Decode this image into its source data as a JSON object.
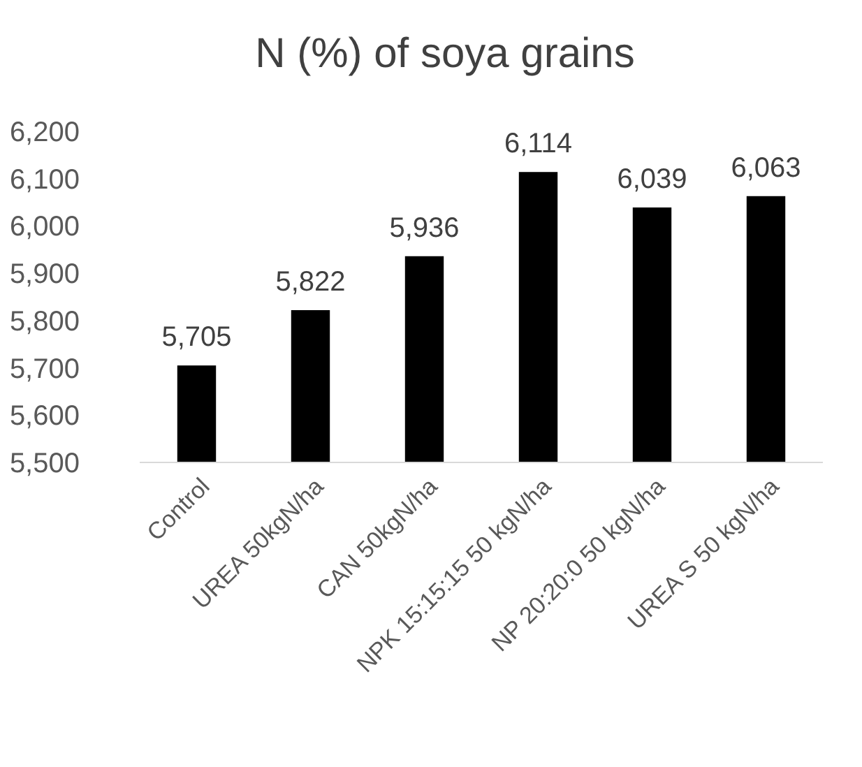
{
  "chart_data": {
    "type": "bar",
    "title": "N (%) of soya grains",
    "categories": [
      "Control",
      "UREA 50kgN/ha",
      "CAN 50kgN/ha",
      "NPK 15:15:15 50 kgN/ha",
      "NP 20:20:0 50 kgN/ha",
      "UREA S 50 kgN/ha"
    ],
    "values": [
      5705,
      5822,
      5936,
      6114,
      6039,
      6063
    ],
    "value_labels": [
      "5,705",
      "5,822",
      "5,936",
      "6,114",
      "6,039",
      "6,063"
    ],
    "color": "#000000",
    "ylim": [
      5500,
      6200
    ],
    "yticks": [
      {
        "value": 5500,
        "label": "5,500"
      },
      {
        "value": 5600,
        "label": "5,600"
      },
      {
        "value": 5700,
        "label": "5,700"
      },
      {
        "value": 5800,
        "label": "5,800"
      },
      {
        "value": 5900,
        "label": "5,900"
      },
      {
        "value": 6000,
        "label": "6,000"
      },
      {
        "value": 6100,
        "label": "6,100"
      },
      {
        "value": 6200,
        "label": "6,200"
      }
    ],
    "grid": false
  }
}
